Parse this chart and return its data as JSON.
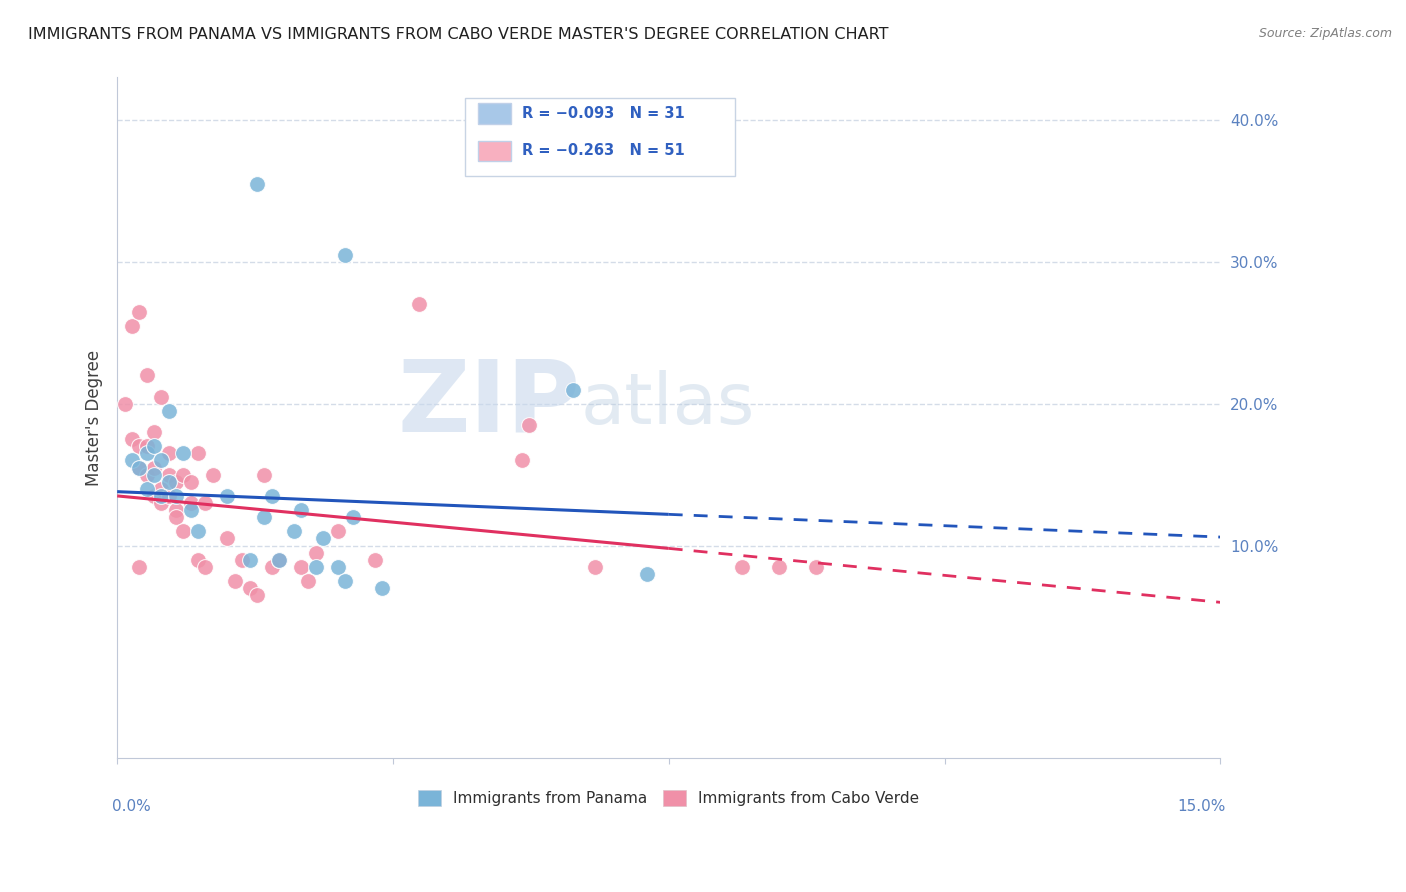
{
  "title": "IMMIGRANTS FROM PANAMA VS IMMIGRANTS FROM CABO VERDE MASTER'S DEGREE CORRELATION CHART",
  "source": "Source: ZipAtlas.com",
  "ylabel": "Master's Degree",
  "right_yticks": [
    10.0,
    20.0,
    30.0,
    40.0
  ],
  "xlim": [
    0.0,
    15.0
  ],
  "ylim": [
    -5.0,
    43.0
  ],
  "legend_entries": [
    {
      "label": "R = -0.093   N = 31",
      "color": "#a8c8e8"
    },
    {
      "label": "R = -0.263   N = 51",
      "color": "#f8b0c0"
    }
  ],
  "panama_color": "#7ab4d8",
  "caboverde_color": "#f090a8",
  "panama_scatter": [
    [
      0.2,
      16.0
    ],
    [
      0.3,
      15.5
    ],
    [
      0.4,
      16.5
    ],
    [
      0.4,
      14.0
    ],
    [
      0.5,
      15.0
    ],
    [
      0.5,
      17.0
    ],
    [
      0.6,
      13.5
    ],
    [
      0.6,
      16.0
    ],
    [
      0.7,
      14.5
    ],
    [
      0.7,
      19.5
    ],
    [
      0.8,
      13.5
    ],
    [
      0.9,
      16.5
    ],
    [
      1.0,
      12.5
    ],
    [
      1.1,
      11.0
    ],
    [
      1.5,
      13.5
    ],
    [
      1.8,
      9.0
    ],
    [
      2.0,
      12.0
    ],
    [
      2.1,
      13.5
    ],
    [
      2.2,
      9.0
    ],
    [
      2.4,
      11.0
    ],
    [
      2.5,
      12.5
    ],
    [
      2.7,
      8.5
    ],
    [
      2.8,
      10.5
    ],
    [
      3.0,
      8.5
    ],
    [
      3.1,
      7.5
    ],
    [
      3.2,
      12.0
    ],
    [
      3.6,
      7.0
    ],
    [
      6.2,
      21.0
    ],
    [
      7.2,
      8.0
    ],
    [
      3.1,
      30.5
    ],
    [
      1.9,
      35.5
    ]
  ],
  "caboverde_scatter": [
    [
      0.1,
      20.0
    ],
    [
      0.2,
      17.5
    ],
    [
      0.2,
      25.5
    ],
    [
      0.3,
      26.5
    ],
    [
      0.3,
      15.5
    ],
    [
      0.3,
      17.0
    ],
    [
      0.4,
      22.0
    ],
    [
      0.4,
      15.0
    ],
    [
      0.4,
      17.0
    ],
    [
      0.5,
      13.5
    ],
    [
      0.5,
      15.5
    ],
    [
      0.5,
      18.0
    ],
    [
      0.6,
      20.5
    ],
    [
      0.6,
      13.0
    ],
    [
      0.6,
      14.0
    ],
    [
      0.7,
      15.0
    ],
    [
      0.7,
      16.5
    ],
    [
      0.7,
      13.5
    ],
    [
      0.8,
      12.5
    ],
    [
      0.8,
      14.5
    ],
    [
      0.8,
      12.0
    ],
    [
      0.9,
      15.0
    ],
    [
      0.9,
      11.0
    ],
    [
      1.0,
      14.5
    ],
    [
      1.0,
      13.0
    ],
    [
      1.1,
      16.5
    ],
    [
      1.1,
      9.0
    ],
    [
      1.2,
      13.0
    ],
    [
      1.2,
      8.5
    ],
    [
      1.3,
      15.0
    ],
    [
      1.5,
      10.5
    ],
    [
      1.6,
      7.5
    ],
    [
      1.7,
      9.0
    ],
    [
      1.8,
      7.0
    ],
    [
      1.9,
      6.5
    ],
    [
      2.0,
      15.0
    ],
    [
      2.1,
      8.5
    ],
    [
      2.2,
      9.0
    ],
    [
      2.5,
      8.5
    ],
    [
      2.6,
      7.5
    ],
    [
      2.7,
      9.5
    ],
    [
      3.0,
      11.0
    ],
    [
      3.5,
      9.0
    ],
    [
      4.1,
      27.0
    ],
    [
      5.5,
      16.0
    ],
    [
      5.6,
      18.5
    ],
    [
      6.5,
      8.5
    ],
    [
      8.5,
      8.5
    ],
    [
      9.0,
      8.5
    ],
    [
      9.5,
      8.5
    ],
    [
      0.3,
      8.5
    ]
  ],
  "panama_trend_solid": {
    "x_start": 0.0,
    "x_end": 7.5,
    "y_start": 13.8,
    "y_end": 12.2
  },
  "caboverde_trend_solid": {
    "x_start": 0.0,
    "x_end": 7.5,
    "y_start": 13.5,
    "y_end": 9.8
  },
  "panama_trend_dashed": {
    "x_start": 7.5,
    "x_end": 15.0,
    "y_start": 12.2,
    "y_end": 10.6
  },
  "caboverde_trend_dashed": {
    "x_start": 7.5,
    "x_end": 15.0,
    "y_start": 9.8,
    "y_end": 6.0
  },
  "grid_color": "#d4dce8",
  "title_fontsize": 11.5,
  "axis_label_color": "#5b82c0",
  "watermark_zip": "ZIP",
  "watermark_atlas": "atlas",
  "background_color": "#ffffff"
}
